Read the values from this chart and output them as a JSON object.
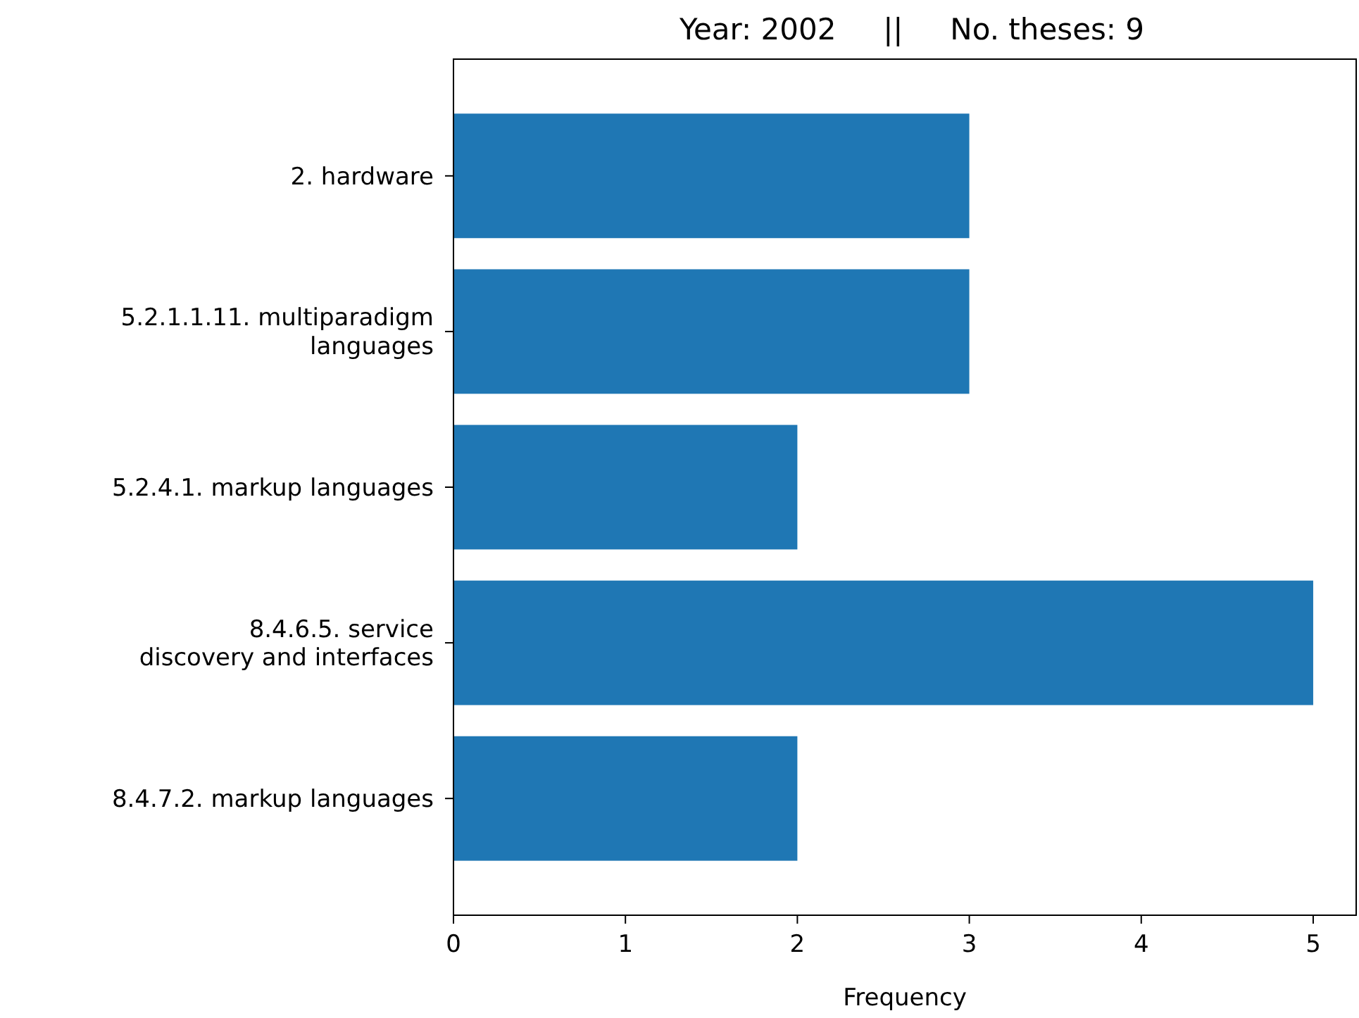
{
  "chart_data": {
    "type": "bar",
    "orientation": "horizontal",
    "title": "Year: 2002     ||     No. theses: 9",
    "xlabel": "Frequency",
    "categories": [
      "2. hardware",
      "5.2.1.1.11. multiparadigm\nlanguages",
      "5.2.4.1. markup languages",
      "8.4.6.5. service\ndiscovery and interfaces",
      "8.4.7.2. markup languages"
    ],
    "values": [
      3,
      3,
      2,
      5,
      2
    ],
    "color": "#1f77b4",
    "xlim": [
      0,
      5.25
    ],
    "xticks": [
      0,
      1,
      2,
      3,
      4,
      5
    ],
    "grid": false
  }
}
